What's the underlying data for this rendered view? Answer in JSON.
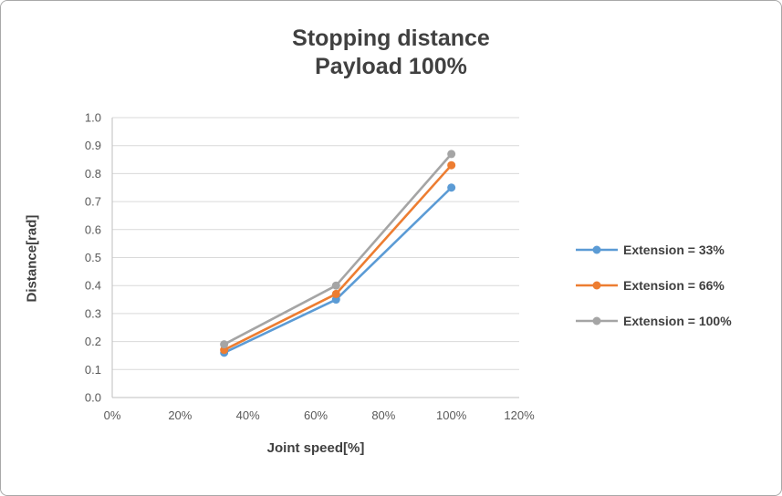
{
  "chart_data": {
    "type": "line",
    "title": "Stopping distance",
    "subtitle": "Payload 100%",
    "xlabel": "Joint speed[%]",
    "ylabel": "Distance[rad]",
    "xlim": [
      0,
      120
    ],
    "ylim": [
      0.0,
      1.0
    ],
    "y_tick_step": 0.1,
    "x_ticks": [
      {
        "value": 0,
        "label": "0%"
      },
      {
        "value": 20,
        "label": "20%"
      },
      {
        "value": 40,
        "label": "40%"
      },
      {
        "value": 60,
        "label": "60%"
      },
      {
        "value": 80,
        "label": "80%"
      },
      {
        "value": 100,
        "label": "100%"
      },
      {
        "value": 120,
        "label": "120%"
      }
    ],
    "x": [
      33,
      66,
      100
    ],
    "series": [
      {
        "name": "Extension = 33%",
        "color": "#5B9BD5",
        "values": [
          0.16,
          0.35,
          0.75
        ]
      },
      {
        "name": "Extension = 66%",
        "color": "#ED7D31",
        "values": [
          0.17,
          0.37,
          0.83
        ]
      },
      {
        "name": "Extension = 100%",
        "color": "#A5A5A5",
        "values": [
          0.19,
          0.4,
          0.87
        ]
      }
    ],
    "grid": "horizontal",
    "legend_position": "right",
    "gridline_color": "#D9D9D9",
    "axis_line_color": "#BFBFBF",
    "tick_label_color": "#595959",
    "title_color": "#404040"
  }
}
